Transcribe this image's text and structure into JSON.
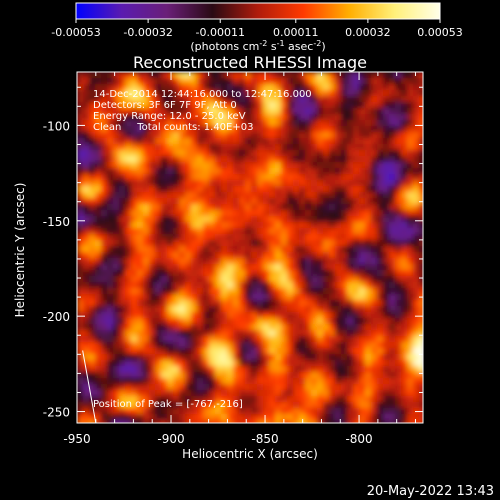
{
  "chart_data": {
    "type": "heatmap",
    "title": "Reconstructed RHESSI Image",
    "colorbar": {
      "colormap": [
        "#0000ff",
        "#5a1bb0",
        "#6a1f78",
        "#2a0a14",
        "#b01c0c",
        "#ff3a00",
        "#ffae00",
        "#fff07a",
        "#ffffe8"
      ],
      "range": [
        -0.00053,
        0.00053
      ],
      "tick_values": [
        -0.00053,
        -0.00032,
        -0.00011,
        0.00011,
        0.00032,
        0.00053
      ],
      "tick_labels": [
        "-0.00053",
        "-0.00032",
        "-0.00011",
        "0.00011",
        "0.00032",
        "0.00053"
      ],
      "label_parts": [
        "(photons cm",
        "-2",
        " s",
        "-1",
        " asec",
        "-2",
        ")"
      ]
    },
    "annotations": [
      "14-Dec-2014 12:44:16.000 to 12:47:16.000",
      "Detectors: 3F 6F 7F 9F, Att 0",
      "Energy Range: 12.0 - 25.0 keV",
      "Clean     Total counts: 1.40E+03"
    ],
    "peak_label": "Position of Peak = [-767,-216]",
    "peak_position": [
      -767,
      -216
    ],
    "xlabel": "Heliocentric X (arcsec)",
    "ylabel": "Heliocentric Y (arcsec)",
    "xlim": [
      -950,
      -766
    ],
    "ylim": [
      -256,
      -72
    ],
    "xticks": [
      -950,
      -900,
      -850,
      -800
    ],
    "xtick_labels": [
      "-950",
      "-900",
      "-850",
      "-800"
    ],
    "yticks": [
      -100,
      -150,
      -200,
      -250
    ],
    "ytick_labels": [
      "-100",
      "-150",
      "-200",
      "-250"
    ],
    "grid": false,
    "limb_line": {
      "x": [
        -947,
        -940
      ],
      "y": [
        -218,
        -256
      ]
    }
  },
  "timestamp": "20-May-2022 13:43"
}
